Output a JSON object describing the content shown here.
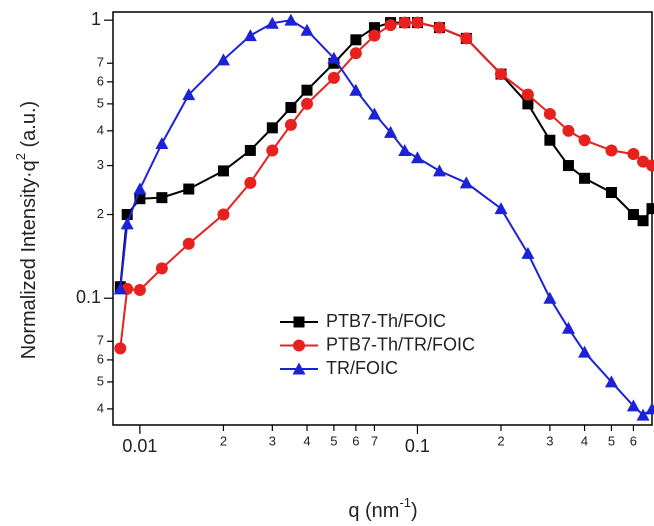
{
  "chart_data": {
    "type": "line",
    "ylabel": "Normalized Intensity·q",
    "ylabel_sup": "2",
    "ylabel_unit": " (a.u.)",
    "xlabel": "q (nm",
    "xlabel_sup": "-1",
    "xlabel_end": ")",
    "log_x": true,
    "log_y": true,
    "xlim": [
      0.008,
      0.7
    ],
    "ylim": [
      0.035,
      1.07
    ],
    "xticks": [
      0.01,
      {
        "value": 0.02,
        "label": "2"
      },
      {
        "value": 0.03,
        "label": "3"
      },
      {
        "value": 0.04,
        "label": "4"
      },
      {
        "value": 0.05,
        "label": "5"
      },
      {
        "value": 0.06,
        "label": "6"
      },
      {
        "value": 0.07,
        "label": "7"
      },
      0.1,
      {
        "value": 0.2,
        "label": "2"
      },
      {
        "value": 0.3,
        "label": "3"
      },
      {
        "value": 0.4,
        "label": "4"
      },
      {
        "value": 0.5,
        "label": "5"
      },
      {
        "value": 0.6,
        "label": "6"
      }
    ],
    "yticks": [
      {
        "value": 0.04,
        "label": "4"
      },
      {
        "value": 0.05,
        "label": "5"
      },
      {
        "value": 0.06,
        "label": "6"
      },
      {
        "value": 0.07,
        "label": "7"
      },
      0.1,
      {
        "value": 0.2,
        "label": "2"
      },
      {
        "value": 0.3,
        "label": "3"
      },
      {
        "value": 0.4,
        "label": "4"
      },
      {
        "value": 0.5,
        "label": "5"
      },
      {
        "value": 0.6,
        "label": "6"
      },
      {
        "value": 0.7,
        "label": "7"
      },
      1
    ],
    "legend": "lower center",
    "x": [
      0.0085,
      0.009,
      0.01,
      0.012,
      0.015,
      0.02,
      0.025,
      0.03,
      0.035,
      0.04,
      0.05,
      0.06,
      0.07,
      0.08,
      0.09,
      0.1,
      0.12,
      0.15,
      0.2,
      0.25,
      0.3,
      0.35,
      0.4,
      0.5,
      0.6,
      0.65,
      0.7
    ],
    "series": [
      {
        "name": "PTB7-Th/FOIC",
        "color": "#000000",
        "marker": "square",
        "values": [
          0.11,
          0.2,
          0.228,
          0.23,
          0.247,
          0.287,
          0.34,
          0.41,
          0.485,
          0.56,
          0.7,
          0.85,
          0.94,
          0.98,
          0.98,
          0.98,
          0.94,
          0.86,
          0.64,
          0.5,
          0.37,
          0.3,
          0.27,
          0.24,
          0.2,
          0.19,
          0.21
        ]
      },
      {
        "name": "PTB7-Th/TR/FOIC",
        "color": "#e8201e",
        "marker": "circle",
        "values": [
          0.066,
          0.108,
          0.107,
          0.128,
          0.157,
          0.2,
          0.26,
          0.34,
          0.42,
          0.5,
          0.62,
          0.76,
          0.88,
          0.96,
          0.98,
          0.98,
          0.94,
          0.86,
          0.64,
          0.54,
          0.46,
          0.4,
          0.37,
          0.34,
          0.33,
          0.31,
          0.3
        ]
      },
      {
        "name": "TR/FOIC",
        "color": "#1c22d8",
        "marker": "triangle",
        "values": [
          0.108,
          0.185,
          0.247,
          0.36,
          0.54,
          0.72,
          0.88,
          0.975,
          1.0,
          0.92,
          0.73,
          0.56,
          0.46,
          0.395,
          0.34,
          0.32,
          0.287,
          0.26,
          0.21,
          0.145,
          0.1,
          0.078,
          0.064,
          0.05,
          0.041,
          0.038,
          0.04
        ]
      }
    ]
  }
}
